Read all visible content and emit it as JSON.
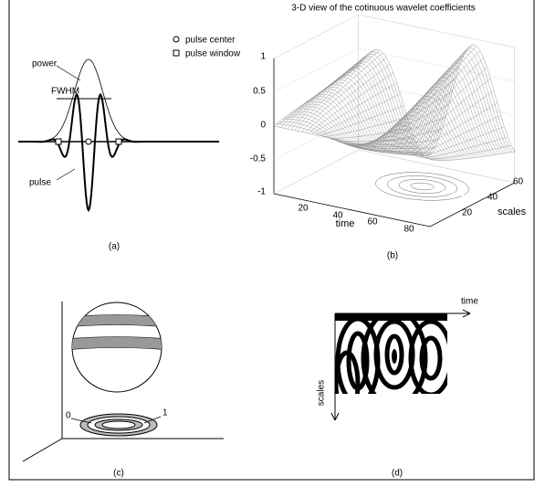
{
  "figure": {
    "panel_a": {
      "caption": "(a)",
      "power": "power",
      "fwhm": "FWHM",
      "pulse": "pulse",
      "legend": [
        "pulse center",
        "pulse window"
      ]
    },
    "panel_b": {
      "caption": "(b)",
      "title": "3-D view of the cotinuous wavelet coefficients",
      "z_ticks": [
        "1",
        "0.5",
        "0",
        "-0.5",
        "-1"
      ],
      "time_ticks": [
        "20",
        "40",
        "60",
        "80"
      ],
      "time_label": "time",
      "scale_ticks": [
        "20",
        "40",
        "60"
      ],
      "scale_label": "scales"
    },
    "panel_c": {
      "caption": "(c)",
      "labels": [
        "0",
        "1"
      ]
    },
    "panel_d": {
      "caption": "(d)",
      "time_label": "time",
      "scale_label": "scales"
    }
  }
}
